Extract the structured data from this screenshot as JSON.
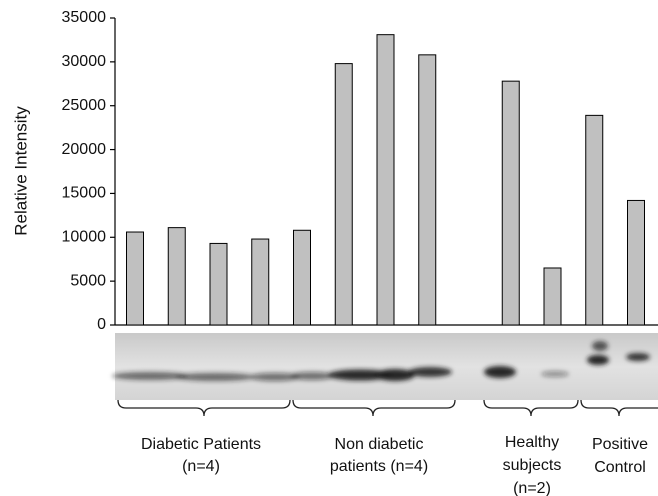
{
  "chart_data": {
    "type": "bar",
    "y_label": "Relative Intensity",
    "categories": [
      null,
      null,
      null,
      null,
      null,
      null,
      null,
      null,
      null,
      null,
      null,
      null,
      null
    ],
    "values": [
      10600,
      11100,
      9300,
      9800,
      10800,
      29800,
      33100,
      30800,
      null,
      27800,
      6500,
      23900,
      14200
    ],
    "color": "#c0c0c0",
    "ylim": [
      0,
      35000
    ],
    "yticks": [
      0,
      5000,
      10000,
      15000,
      20000,
      25000,
      30000,
      35000
    ],
    "groups": [
      {
        "lines": [
          "Diabetic Patients",
          "(n=4)"
        ]
      },
      {
        "lines": [
          "Non diabetic",
          "patients (n=4)"
        ]
      },
      {
        "lines": [
          "Healthy",
          "subjects",
          "(n=2)"
        ]
      },
      {
        "lines": [
          "Positive",
          "Control"
        ]
      }
    ]
  }
}
